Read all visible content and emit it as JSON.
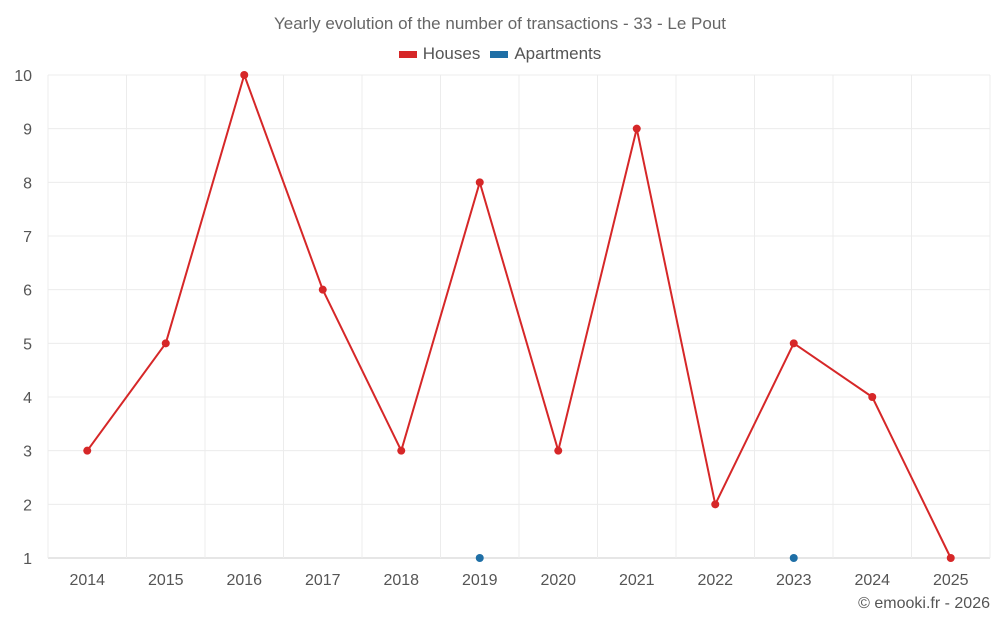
{
  "chart_data": {
    "type": "line",
    "title": "Yearly evolution of the number of transactions - 33 - Le Pout",
    "categories": [
      "2014",
      "2015",
      "2016",
      "2017",
      "2018",
      "2019",
      "2020",
      "2021",
      "2022",
      "2023",
      "2024",
      "2025"
    ],
    "series": [
      {
        "name": "Houses",
        "color": "#d62728",
        "connected": true,
        "values": [
          3,
          5,
          10,
          6,
          3,
          8,
          3,
          9,
          2,
          5,
          4,
          1
        ]
      },
      {
        "name": "Apartments",
        "color": "#1f6fa6",
        "connected": false,
        "values": [
          null,
          null,
          null,
          null,
          null,
          1,
          null,
          null,
          null,
          1,
          null,
          null
        ]
      }
    ],
    "yticks": [
      1,
      2,
      3,
      4,
      5,
      6,
      7,
      8,
      9,
      10
    ],
    "ylim": [
      1,
      10
    ],
    "xlabel": "",
    "ylabel": "",
    "grid": true,
    "legend_position": "top-center"
  },
  "credit": "© emooki.fr - 2026"
}
